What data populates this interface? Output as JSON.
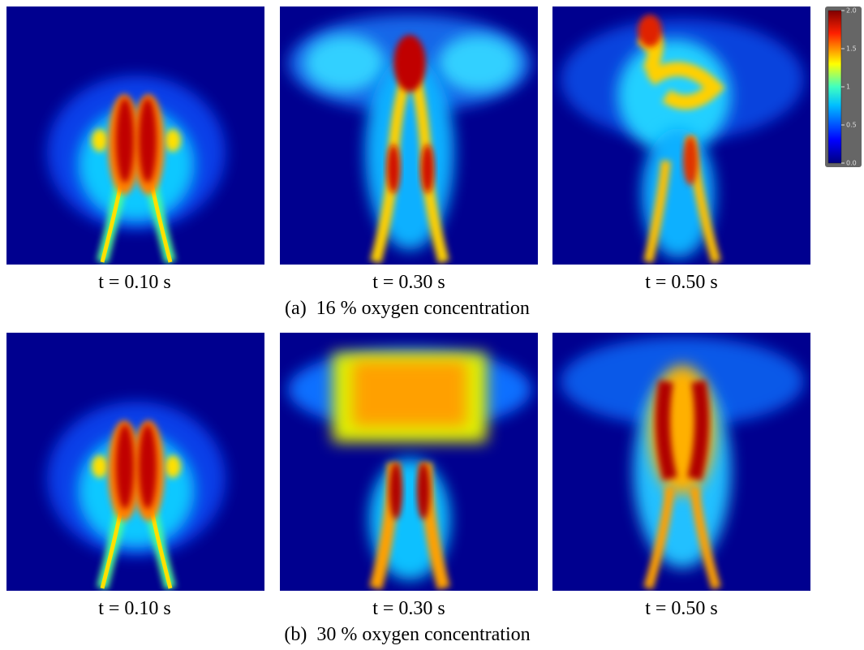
{
  "rows": [
    {
      "caption": "(a)  16 % oxygen concentration",
      "panels": [
        {
          "label": "t = 0.10 s"
        },
        {
          "label": "t = 0.30 s"
        },
        {
          "label": "t = 0.50 s"
        }
      ]
    },
    {
      "caption": "(b)  30 % oxygen concentration",
      "panels": [
        {
          "label": "t = 0.10 s"
        },
        {
          "label": "t = 0.30 s"
        },
        {
          "label": "t = 0.50 s"
        }
      ]
    }
  ],
  "colorbar": {
    "lim": [
      0,
      2
    ],
    "ticks": [
      {
        "value": 0,
        "label": "0.0"
      },
      0.5,
      1,
      1.5,
      {
        "value": 2,
        "label": "2.0"
      }
    ]
  }
}
